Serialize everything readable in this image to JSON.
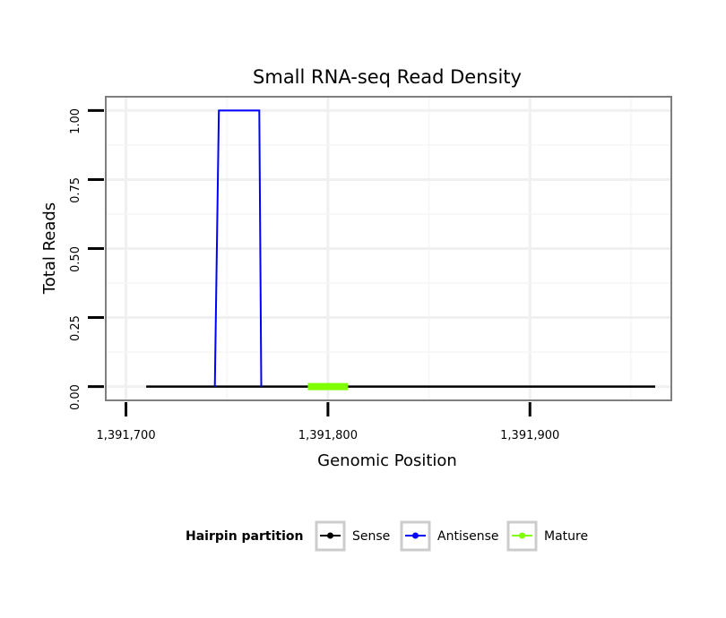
{
  "chart_data": {
    "type": "line",
    "title": "Small RNA-seq Read Density",
    "xlabel": "Genomic Position",
    "ylabel": "Total Reads",
    "xlim": [
      1391690,
      1391970
    ],
    "ylim": [
      -0.05,
      1.05
    ],
    "x_ticks": [
      1391700,
      1391800,
      1391900
    ],
    "x_tick_labels": [
      "1,391,700",
      "1,391,800",
      "1,391,900"
    ],
    "y_ticks": [
      0,
      0.25,
      0.5,
      0.75,
      1.0
    ],
    "y_tick_labels": [
      "0.00",
      "0.25",
      "0.50",
      "0.75",
      "1.00"
    ],
    "grid": true,
    "legend": {
      "title": "Hairpin partition",
      "placement": "bottom",
      "entries": [
        "Sense",
        "Antisense",
        "Mature"
      ]
    },
    "series": [
      {
        "name": "Sense",
        "color": "#000000",
        "x": [
          1391710,
          1391962
        ],
        "y": [
          0,
          0
        ]
      },
      {
        "name": "Antisense",
        "color": "#0000ff",
        "x": [
          1391744,
          1391746,
          1391766,
          1391767
        ],
        "y": [
          0,
          1,
          1,
          0
        ]
      },
      {
        "name": "Mature",
        "color": "#7fff00",
        "x": [
          1391790,
          1391810
        ],
        "y": [
          0,
          0
        ]
      }
    ]
  }
}
